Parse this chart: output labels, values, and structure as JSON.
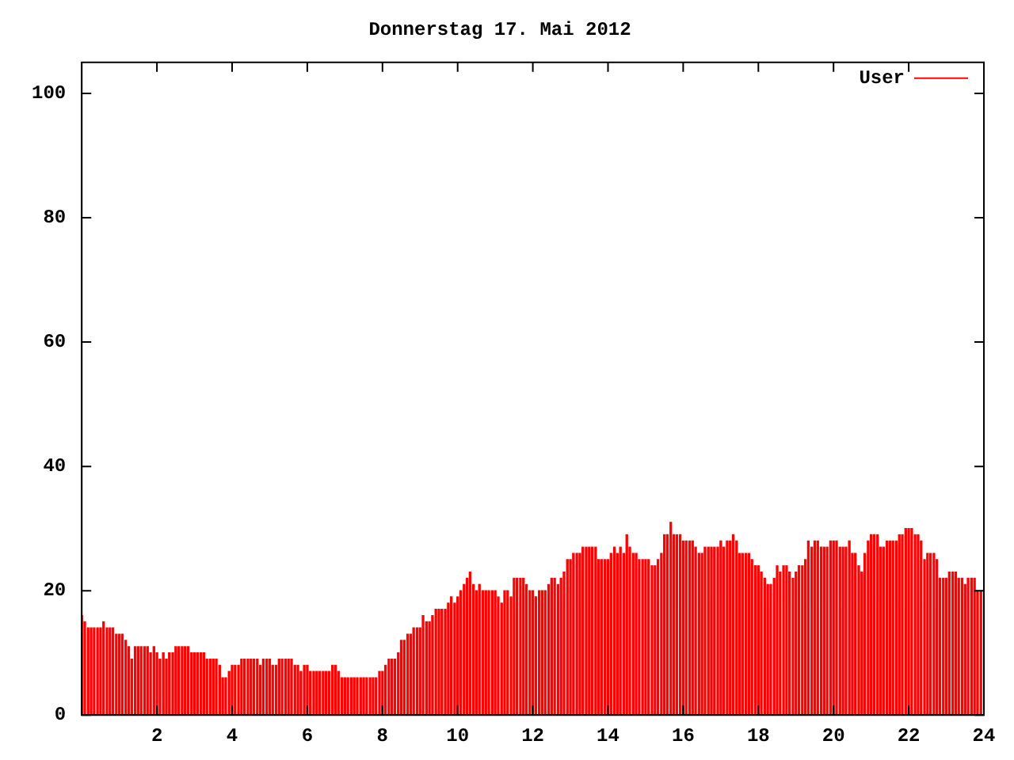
{
  "chart_data": {
    "type": "bar",
    "title": "Donnerstag 17. Mai 2012",
    "x": [
      0,
      0.08,
      0.17,
      0.25,
      0.33,
      0.42,
      0.5,
      0.58,
      0.67,
      0.75,
      0.83,
      0.92,
      1,
      1.08,
      1.17,
      1.25,
      1.33,
      1.42,
      1.5,
      1.58,
      1.67,
      1.75,
      1.83,
      1.92,
      2,
      2.08,
      2.17,
      2.25,
      2.33,
      2.42,
      2.5,
      2.58,
      2.67,
      2.75,
      2.83,
      2.92,
      3,
      3.08,
      3.17,
      3.25,
      3.33,
      3.42,
      3.5,
      3.58,
      3.67,
      3.75,
      3.83,
      3.92,
      4,
      4.08,
      4.17,
      4.25,
      4.33,
      4.42,
      4.5,
      4.58,
      4.67,
      4.75,
      4.83,
      4.92,
      5,
      5.08,
      5.17,
      5.25,
      5.33,
      5.42,
      5.5,
      5.58,
      5.67,
      5.75,
      5.83,
      5.92,
      6,
      6.08,
      6.17,
      6.25,
      6.33,
      6.42,
      6.5,
      6.58,
      6.67,
      6.75,
      6.83,
      6.92,
      7,
      7.08,
      7.17,
      7.25,
      7.33,
      7.42,
      7.5,
      7.58,
      7.67,
      7.75,
      7.83,
      7.92,
      8,
      8.08,
      8.17,
      8.25,
      8.33,
      8.42,
      8.5,
      8.58,
      8.67,
      8.75,
      8.83,
      8.92,
      9,
      9.08,
      9.17,
      9.25,
      9.33,
      9.42,
      9.5,
      9.58,
      9.67,
      9.75,
      9.83,
      9.92,
      10,
      10.08,
      10.17,
      10.25,
      10.33,
      10.42,
      10.5,
      10.58,
      10.67,
      10.75,
      10.83,
      10.92,
      11,
      11.08,
      11.17,
      11.25,
      11.33,
      11.42,
      11.5,
      11.58,
      11.67,
      11.75,
      11.83,
      11.92,
      12,
      12.08,
      12.17,
      12.25,
      12.33,
      12.42,
      12.5,
      12.58,
      12.67,
      12.75,
      12.83,
      12.92,
      13,
      13.08,
      13.17,
      13.25,
      13.33,
      13.42,
      13.5,
      13.58,
      13.67,
      13.75,
      13.83,
      13.92,
      14,
      14.08,
      14.17,
      14.25,
      14.33,
      14.42,
      14.5,
      14.58,
      14.67,
      14.75,
      14.83,
      14.92,
      15,
      15.08,
      15.17,
      15.25,
      15.33,
      15.42,
      15.5,
      15.58,
      15.67,
      15.75,
      15.83,
      15.92,
      16,
      16.08,
      16.17,
      16.25,
      16.33,
      16.42,
      16.5,
      16.58,
      16.67,
      16.75,
      16.83,
      16.92,
      17,
      17.08,
      17.17,
      17.25,
      17.33,
      17.42,
      17.5,
      17.58,
      17.67,
      17.75,
      17.83,
      17.92,
      18,
      18.08,
      18.17,
      18.25,
      18.33,
      18.42,
      18.5,
      18.58,
      18.67,
      18.75,
      18.83,
      18.92,
      19,
      19.08,
      19.17,
      19.25,
      19.33,
      19.42,
      19.5,
      19.58,
      19.67,
      19.75,
      19.83,
      19.92,
      20,
      20.08,
      20.17,
      20.25,
      20.33,
      20.42,
      20.5,
      20.58,
      20.67,
      20.75,
      20.83,
      20.92,
      21,
      21.08,
      21.17,
      21.25,
      21.33,
      21.42,
      21.5,
      21.58,
      21.67,
      21.75,
      21.83,
      21.92,
      22,
      22.08,
      22.17,
      22.25,
      22.33,
      22.42,
      22.5,
      22.58,
      22.67,
      22.75,
      22.83,
      22.92,
      23,
      23.08,
      23.17,
      23.25,
      23.33,
      23.42,
      23.5,
      23.58,
      23.67,
      23.75,
      23.83,
      23.92
    ],
    "series": [
      {
        "name": "User",
        "color": "#ff0000",
        "values": [
          16,
          15,
          14,
          14,
          14,
          14,
          14,
          15,
          14,
          14,
          14,
          13,
          13,
          13,
          12,
          11,
          9,
          11,
          11,
          11,
          11,
          11,
          10,
          11,
          10,
          9,
          10,
          9,
          10,
          10,
          11,
          11,
          11,
          11,
          11,
          10,
          10,
          10,
          10,
          10,
          9,
          9,
          9,
          9,
          8,
          6,
          6,
          7,
          8,
          8,
          8,
          9,
          9,
          9,
          9,
          9,
          9,
          8,
          9,
          9,
          9,
          8,
          8,
          9,
          9,
          9,
          9,
          9,
          8,
          8,
          7,
          8,
          8,
          7,
          7,
          7,
          7,
          7,
          7,
          7,
          8,
          8,
          7,
          6,
          6,
          6,
          6,
          6,
          6,
          6,
          6,
          6,
          6,
          6,
          6,
          7,
          7,
          8,
          9,
          9,
          9,
          10,
          12,
          12,
          13,
          13,
          14,
          14,
          14,
          16,
          15,
          15,
          16,
          17,
          17,
          17,
          17,
          18,
          19,
          18,
          19,
          20,
          21,
          22,
          23,
          21,
          20,
          21,
          20,
          20,
          20,
          20,
          20,
          19,
          18,
          20,
          20,
          19,
          22,
          22,
          22,
          22,
          21,
          20,
          20,
          19,
          20,
          20,
          20,
          21,
          22,
          22,
          21,
          22,
          23,
          25,
          25,
          26,
          26,
          26,
          27,
          27,
          27,
          27,
          27,
          25,
          25,
          25,
          25,
          26,
          27,
          26,
          27,
          26,
          29,
          27,
          26,
          26,
          25,
          25,
          25,
          25,
          24,
          24,
          25,
          26,
          29,
          29,
          31,
          29,
          29,
          29,
          28,
          28,
          28,
          28,
          27,
          26,
          26,
          27,
          27,
          27,
          27,
          27,
          28,
          27,
          28,
          28,
          29,
          28,
          26,
          26,
          26,
          26,
          25,
          24,
          24,
          23,
          22,
          21,
          21,
          22,
          24,
          23,
          24,
          24,
          23,
          22,
          23,
          24,
          24,
          25,
          28,
          27,
          28,
          28,
          27,
          27,
          27,
          28,
          28,
          28,
          27,
          27,
          27,
          28,
          26,
          26,
          24,
          23,
          26,
          28,
          29,
          29,
          29,
          27,
          27,
          28,
          28,
          28,
          28,
          29,
          29,
          30,
          30,
          30,
          29,
          29,
          28,
          25,
          26,
          26,
          26,
          25,
          22,
          22,
          22,
          23,
          23,
          23,
          22,
          22,
          21,
          22,
          22,
          22,
          20,
          20
        ]
      }
    ],
    "xlim": [
      0,
      24
    ],
    "xticks": [
      2,
      4,
      6,
      8,
      10,
      12,
      14,
      16,
      18,
      20,
      22,
      24
    ],
    "ylim": [
      0,
      105
    ],
    "yticks": [
      0,
      20,
      40,
      60,
      80,
      100
    ],
    "legend": "top right",
    "grid": false
  }
}
